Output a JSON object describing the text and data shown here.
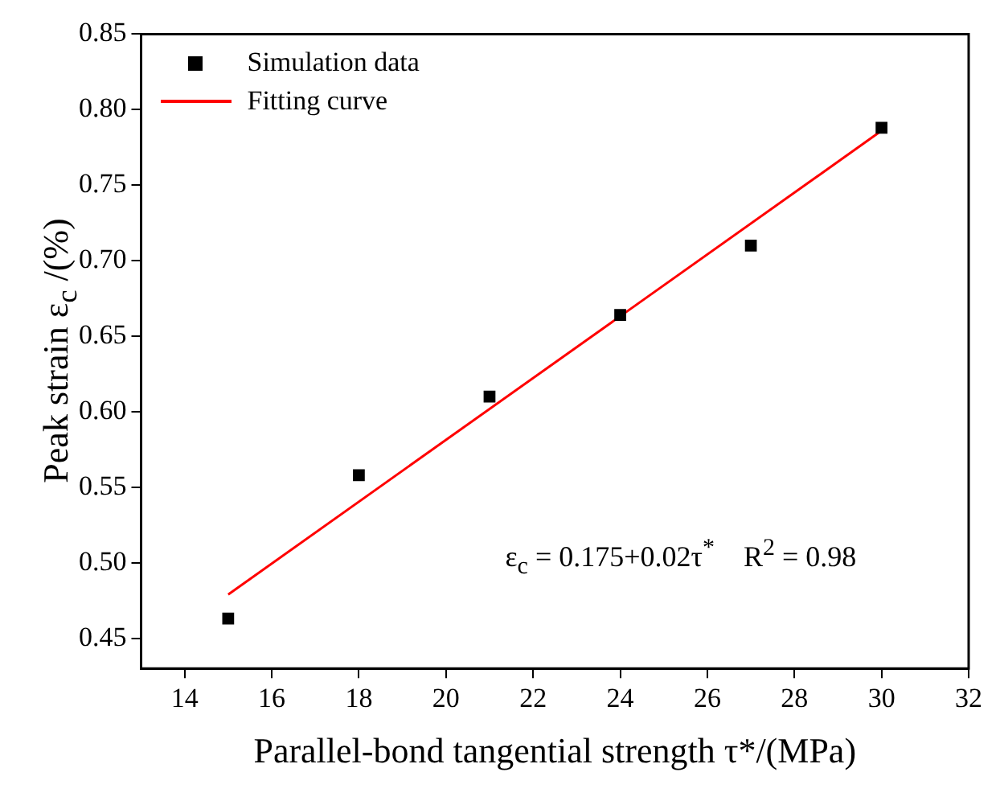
{
  "chart_data": {
    "type": "scatter",
    "xlabel": "Parallel-bond tangential strength τ*/(MPa)",
    "ylabel": "Peak strain ε$_{c}$ /(%)",
    "x": [
      15,
      18,
      21,
      24,
      27,
      30
    ],
    "series": [
      {
        "name": "Simulation data",
        "color": "#000000",
        "marker": "square",
        "values": [
          0.463,
          0.558,
          0.61,
          0.664,
          0.71,
          0.788
        ]
      },
      {
        "name": "Fitting curve",
        "type": "line",
        "color": "#ff0000",
        "marker": "none",
        "line_style": "solid",
        "x": [
          15,
          30
        ],
        "values": [
          0.479,
          0.786
        ]
      }
    ],
    "xlim": [
      13,
      32
    ],
    "xticks": [
      14,
      16,
      18,
      20,
      22,
      24,
      26,
      28,
      30,
      32
    ],
    "ylim": [
      0.43,
      0.85
    ],
    "yticks": [
      {
        "value": 0.45,
        "label": "0.45"
      },
      {
        "value": 0.5,
        "label": "0.50"
      },
      {
        "value": 0.55,
        "label": "0.55"
      },
      {
        "value": 0.6,
        "label": "0.60"
      },
      {
        "value": 0.65,
        "label": "0.65"
      },
      {
        "value": 0.7,
        "label": "0.70"
      },
      {
        "value": 0.75,
        "label": "0.75"
      },
      {
        "value": 0.8,
        "label": "0.80"
      },
      {
        "value": 0.85,
        "label": "0.85"
      }
    ],
    "annotations": [
      "ε$_{c}$ = 0.175+0.02τ$^{*}$    R$^{2}$ = 0.98"
    ],
    "legend": "top left",
    "grid": false
  }
}
